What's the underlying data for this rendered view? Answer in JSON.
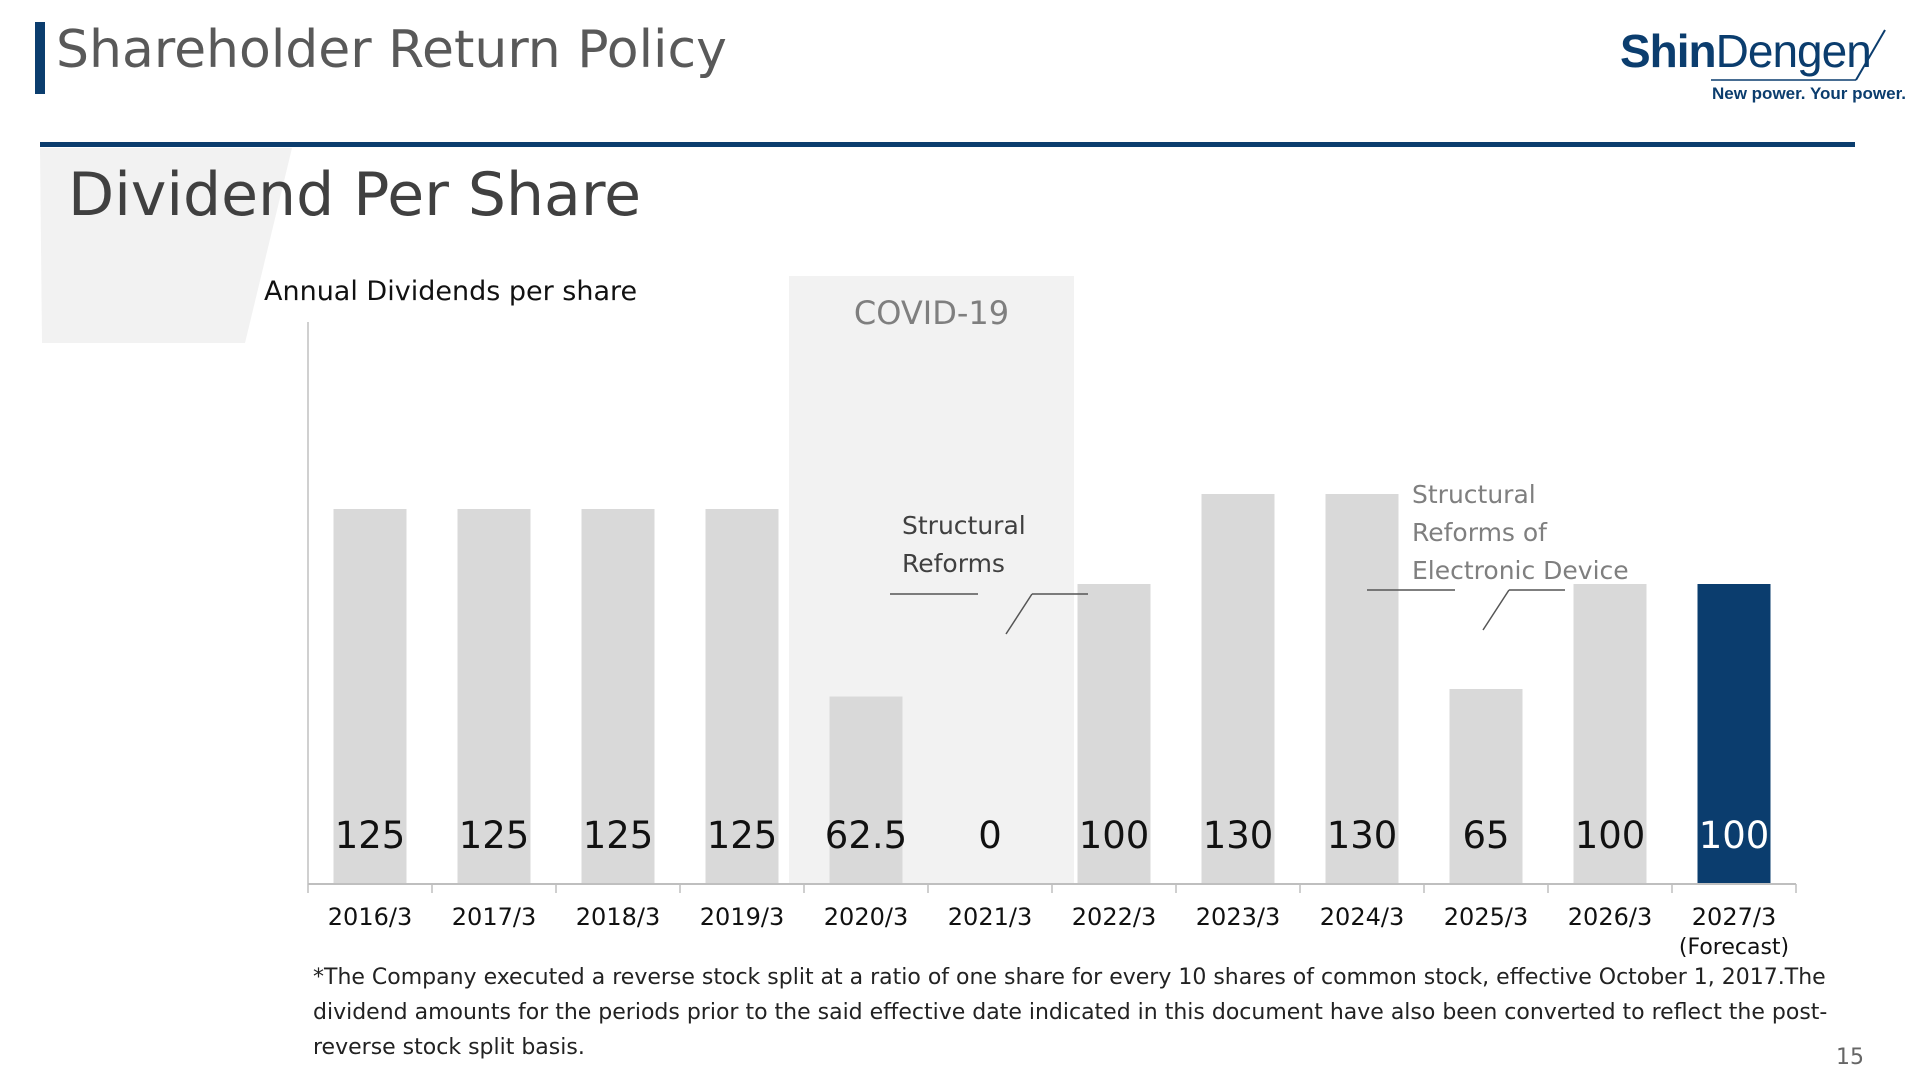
{
  "header": {
    "title": "Shareholder Return Policy",
    "logo_text_bold": "Shin",
    "logo_text_regular": "Dengen",
    "logo_tagline": "New power. Your power."
  },
  "section": {
    "subtitle": "Dividend Per Share"
  },
  "chart_data": {
    "type": "bar",
    "title": "Annual Dividends per share",
    "categories": [
      "2016/3",
      "2017/3",
      "2018/3",
      "2019/3",
      "2020/3",
      "2021/3",
      "2022/3",
      "2023/3",
      "2024/3",
      "2025/3",
      "2026/3",
      "2027/3"
    ],
    "category_notes": [
      "",
      "",
      "",
      "",
      "",
      "",
      "",
      "",
      "",
      "",
      "",
      "(Forecast)"
    ],
    "values": [
      125,
      125,
      125,
      125,
      62.5,
      0,
      100,
      130,
      130,
      65,
      100,
      100
    ],
    "value_labels": [
      "125",
      "125",
      "125",
      "125",
      "62.5",
      "0",
      "100",
      "130",
      "130",
      "65",
      "100",
      "100"
    ],
    "highlight_index": 11,
    "colors": {
      "bar": "#d9d9d9",
      "highlight": "#0b3d6e",
      "covid_band": "#f2f2f2"
    },
    "covid_band": {
      "label": "COVID-19",
      "from_index": 4,
      "to_index": 5
    },
    "annotations": [
      {
        "text_lines": [
          "Structural",
          "Reforms"
        ],
        "between_index": 5,
        "color": "#404040"
      },
      {
        "text_lines": [
          "Structural",
          "Reforms of",
          "Electronic Device"
        ],
        "between_index": 9,
        "color": "#7f7f7f"
      }
    ],
    "xlabel": "",
    "ylabel": "",
    "ylim": [
      0,
      140
    ]
  },
  "footnote": "*The Company executed a reverse stock split at a ratio of one share for every 10 shares of common stock, effective October 1, 2017.The dividend amounts for the periods prior to the said effective date indicated in this document have also been converted to reflect the post-reverse stock split basis.",
  "page_number": "15"
}
